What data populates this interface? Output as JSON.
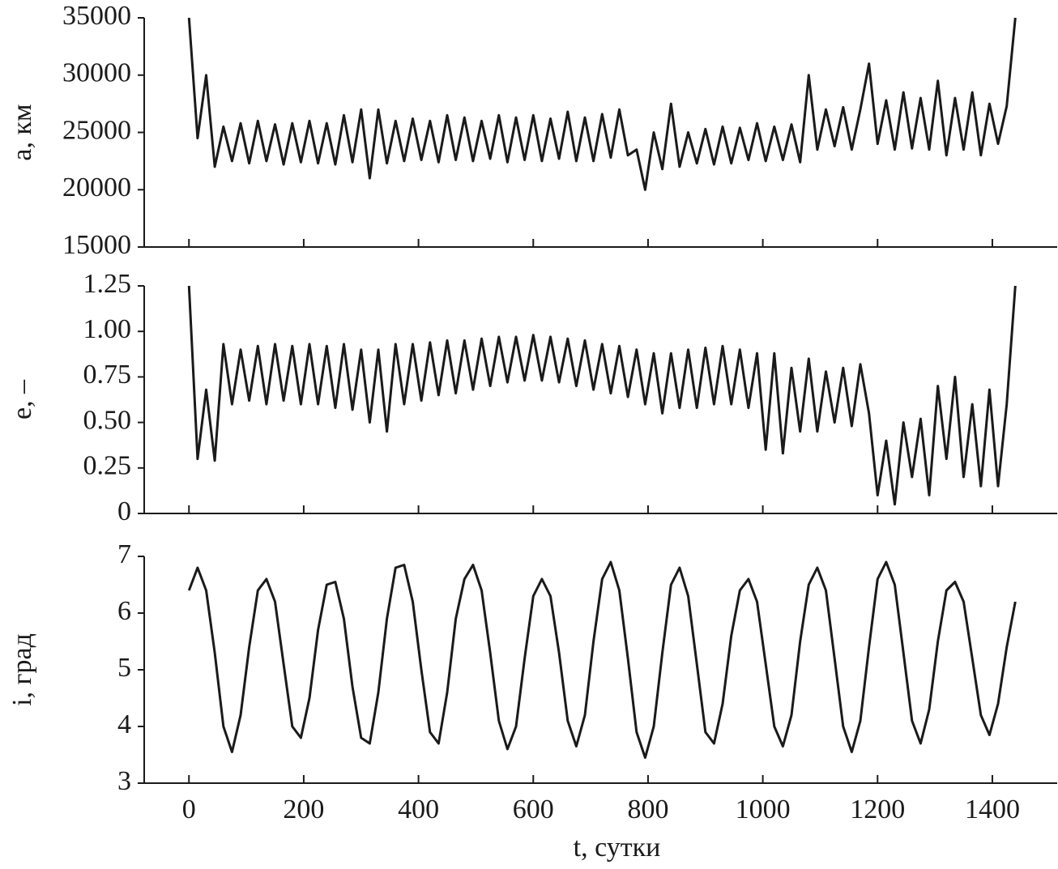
{
  "chart_data": [
    {
      "type": "line",
      "ylabel": "a, км",
      "color": "#1a1a1a",
      "xlim": [
        -78,
        1513
      ],
      "xticks": [
        0,
        200,
        400,
        600,
        800,
        1000,
        1200,
        1400
      ],
      "ylim": [
        15000,
        35000
      ],
      "yticks": [
        15000,
        20000,
        25000,
        30000,
        35000
      ],
      "x": [
        0,
        15,
        30,
        45,
        60,
        75,
        90,
        105,
        120,
        135,
        150,
        165,
        180,
        195,
        210,
        225,
        240,
        255,
        270,
        285,
        300,
        315,
        330,
        345,
        360,
        375,
        390,
        405,
        420,
        435,
        450,
        465,
        480,
        495,
        510,
        525,
        540,
        555,
        570,
        585,
        600,
        615,
        630,
        645,
        660,
        675,
        690,
        705,
        720,
        735,
        750,
        765,
        780,
        795,
        810,
        825,
        840,
        855,
        870,
        885,
        900,
        915,
        930,
        945,
        960,
        975,
        990,
        1005,
        1020,
        1035,
        1050,
        1065,
        1080,
        1095,
        1110,
        1125,
        1140,
        1155,
        1170,
        1185,
        1200,
        1215,
        1230,
        1245,
        1260,
        1275,
        1290,
        1305,
        1320,
        1335,
        1350,
        1365,
        1380,
        1395,
        1410,
        1425,
        1440
      ],
      "values": [
        35000,
        24500,
        30000,
        22000,
        25500,
        22500,
        25800,
        22300,
        26000,
        22500,
        25700,
        22200,
        25800,
        22400,
        26000,
        22300,
        25800,
        22200,
        26500,
        22400,
        27000,
        21000,
        27000,
        22300,
        26000,
        22500,
        26200,
        22600,
        26000,
        22400,
        26500,
        22600,
        26300,
        22500,
        26000,
        22700,
        26500,
        22400,
        26300,
        22600,
        26500,
        22500,
        26200,
        22700,
        26800,
        22500,
        26300,
        22500,
        26600,
        22800,
        27000,
        23000,
        23500,
        20000,
        25000,
        21800,
        27500,
        22000,
        25000,
        22300,
        25300,
        22200,
        25500,
        22300,
        25400,
        22600,
        25800,
        22500,
        25500,
        22600,
        25700,
        22400,
        30000,
        23500,
        27000,
        23800,
        27200,
        23500,
        27000,
        31000,
        24000,
        27800,
        23500,
        28500,
        23600,
        28000,
        23500,
        29500,
        23000,
        28000,
        23500,
        28500,
        23000,
        27500,
        24000,
        27300,
        35000
      ]
    },
    {
      "type": "line",
      "ylabel": "e, –",
      "color": "#1a1a1a",
      "xlim": [
        -78,
        1513
      ],
      "xticks": [
        0,
        200,
        400,
        600,
        800,
        1000,
        1200,
        1400
      ],
      "ylim": [
        0,
        1.25
      ],
      "yticks": [
        0,
        0.25,
        {
          "value": 0.5,
          "label": "0.50"
        },
        0.75,
        {
          "value": 1,
          "label": "1.00"
        },
        1.25
      ],
      "x": [
        0,
        15,
        30,
        45,
        60,
        75,
        90,
        105,
        120,
        135,
        150,
        165,
        180,
        195,
        210,
        225,
        240,
        255,
        270,
        285,
        300,
        315,
        330,
        345,
        360,
        375,
        390,
        405,
        420,
        435,
        450,
        465,
        480,
        495,
        510,
        525,
        540,
        555,
        570,
        585,
        600,
        615,
        630,
        645,
        660,
        675,
        690,
        705,
        720,
        735,
        750,
        765,
        780,
        795,
        810,
        825,
        840,
        855,
        870,
        885,
        900,
        915,
        930,
        945,
        960,
        975,
        990,
        1005,
        1020,
        1035,
        1050,
        1065,
        1080,
        1095,
        1110,
        1125,
        1140,
        1155,
        1170,
        1185,
        1200,
        1215,
        1230,
        1245,
        1260,
        1275,
        1290,
        1305,
        1320,
        1335,
        1350,
        1365,
        1380,
        1395,
        1410,
        1425,
        1440
      ],
      "values": [
        1.25,
        0.3,
        0.68,
        0.29,
        0.93,
        0.6,
        0.9,
        0.62,
        0.92,
        0.6,
        0.93,
        0.62,
        0.92,
        0.6,
        0.93,
        0.6,
        0.92,
        0.58,
        0.93,
        0.57,
        0.9,
        0.5,
        0.9,
        0.45,
        0.93,
        0.6,
        0.93,
        0.62,
        0.94,
        0.65,
        0.95,
        0.66,
        0.95,
        0.68,
        0.96,
        0.7,
        0.97,
        0.72,
        0.97,
        0.73,
        0.98,
        0.73,
        0.97,
        0.72,
        0.96,
        0.7,
        0.95,
        0.68,
        0.93,
        0.66,
        0.92,
        0.64,
        0.9,
        0.6,
        0.88,
        0.55,
        0.88,
        0.58,
        0.9,
        0.58,
        0.91,
        0.6,
        0.92,
        0.6,
        0.9,
        0.58,
        0.88,
        0.35,
        0.88,
        0.33,
        0.8,
        0.45,
        0.85,
        0.45,
        0.78,
        0.5,
        0.8,
        0.48,
        0.82,
        0.55,
        0.1,
        0.4,
        0.05,
        0.5,
        0.2,
        0.52,
        0.1,
        0.7,
        0.3,
        0.75,
        0.2,
        0.6,
        0.15,
        0.68,
        0.15,
        0.6,
        1.25
      ]
    },
    {
      "type": "line",
      "ylabel": "i, град",
      "xlabel": "t, сутки",
      "color": "#1a1a1a",
      "xlim": [
        -78,
        1513
      ],
      "xticks": [
        0,
        200,
        400,
        600,
        800,
        1000,
        1200,
        1400
      ],
      "ylim": [
        3,
        7
      ],
      "yticks": [
        3,
        4,
        5,
        6,
        7
      ],
      "x": [
        0,
        15,
        30,
        45,
        60,
        75,
        90,
        105,
        120,
        135,
        150,
        165,
        180,
        195,
        210,
        225,
        240,
        255,
        270,
        285,
        300,
        315,
        330,
        345,
        360,
        375,
        390,
        405,
        420,
        435,
        450,
        465,
        480,
        495,
        510,
        525,
        540,
        555,
        570,
        585,
        600,
        615,
        630,
        645,
        660,
        675,
        690,
        705,
        720,
        735,
        750,
        765,
        780,
        795,
        810,
        825,
        840,
        855,
        870,
        885,
        900,
        915,
        930,
        945,
        960,
        975,
        990,
        1005,
        1020,
        1035,
        1050,
        1065,
        1080,
        1095,
        1110,
        1125,
        1140,
        1155,
        1170,
        1185,
        1200,
        1215,
        1230,
        1245,
        1260,
        1275,
        1290,
        1305,
        1320,
        1335,
        1350,
        1365,
        1380,
        1395,
        1410,
        1425,
        1440
      ],
      "values": [
        6.4,
        6.8,
        6.4,
        5.3,
        4.0,
        3.55,
        4.2,
        5.4,
        6.4,
        6.6,
        6.2,
        5.1,
        4.0,
        3.8,
        4.5,
        5.7,
        6.5,
        6.55,
        5.9,
        4.7,
        3.8,
        3.7,
        4.6,
        5.9,
        6.8,
        6.85,
        6.2,
        5.0,
        3.9,
        3.7,
        4.6,
        5.9,
        6.6,
        6.85,
        6.4,
        5.3,
        4.1,
        3.6,
        4.0,
        5.2,
        6.3,
        6.6,
        6.3,
        5.3,
        4.1,
        3.65,
        4.2,
        5.5,
        6.6,
        6.9,
        6.4,
        5.2,
        3.9,
        3.45,
        4.0,
        5.3,
        6.5,
        6.8,
        6.3,
        5.1,
        3.9,
        3.7,
        4.4,
        5.6,
        6.4,
        6.6,
        6.2,
        5.1,
        4.0,
        3.65,
        4.2,
        5.5,
        6.5,
        6.8,
        6.4,
        5.2,
        4.0,
        3.55,
        4.1,
        5.4,
        6.6,
        6.9,
        6.5,
        5.3,
        4.1,
        3.7,
        4.3,
        5.5,
        6.4,
        6.55,
        6.2,
        5.2,
        4.2,
        3.85,
        4.4,
        5.4,
        6.2
      ]
    }
  ]
}
